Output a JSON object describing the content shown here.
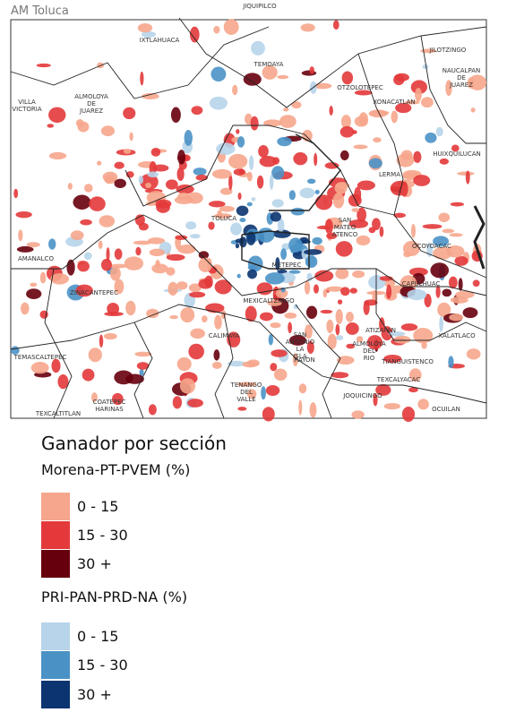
{
  "header": {
    "title": "AM Toluca"
  },
  "map": {
    "labels": [
      {
        "lines": [
          "IXTLAHUACA"
        ]
      },
      {
        "lines": [
          "JIQUIPILCO"
        ]
      },
      {
        "lines": [
          "TEMOAYA"
        ]
      },
      {
        "lines": [
          "OTZOLOTEPEC"
        ]
      },
      {
        "lines": [
          "JILOTZINGO"
        ]
      },
      {
        "lines": [
          "NAUCALPAN",
          "DE",
          "JUAREZ"
        ]
      },
      {
        "lines": [
          "XONACATLAN"
        ]
      },
      {
        "lines": [
          "VILLA",
          "VICTORIA"
        ]
      },
      {
        "lines": [
          "ALMOLOYA",
          "DE",
          "JUAREZ"
        ]
      },
      {
        "lines": [
          "HUIXQUILUCAN"
        ]
      },
      {
        "lines": [
          "LERMA"
        ]
      },
      {
        "lines": [
          "TOLUCA"
        ]
      },
      {
        "lines": [
          "SAN",
          "MATEO",
          "ATENCO"
        ]
      },
      {
        "lines": [
          "OCOYOACAC"
        ]
      },
      {
        "lines": [
          "AMANALCO"
        ]
      },
      {
        "lines": [
          "METEPEC"
        ]
      },
      {
        "lines": [
          "ZINACANTEPEC"
        ]
      },
      {
        "lines": [
          "CAPULHUAC"
        ]
      },
      {
        "lines": [
          "MEXICALTZINGO"
        ]
      },
      {
        "lines": [
          "CALIMAYA"
        ]
      },
      {
        "lines": [
          "SAN",
          "ANTONIO",
          "LA",
          "ISLA"
        ]
      },
      {
        "lines": [
          "RAYON"
        ]
      },
      {
        "lines": [
          "ATIZAPAN"
        ]
      },
      {
        "lines": [
          "XALATLACO"
        ]
      },
      {
        "lines": [
          "TEMASCALTEPEC"
        ]
      },
      {
        "lines": [
          "ALMOLOYA",
          "DEL",
          "RIO"
        ]
      },
      {
        "lines": [
          "TIANGUISTENCO"
        ]
      },
      {
        "lines": [
          "TEXCALYACAC"
        ]
      },
      {
        "lines": [
          "TENANGO",
          "DEL",
          "VALLE"
        ]
      },
      {
        "lines": [
          "JOQUICINGO"
        ]
      },
      {
        "lines": [
          "COATEPEC",
          "HARINAS"
        ]
      },
      {
        "lines": [
          "TEXCALTITLAN"
        ]
      },
      {
        "lines": [
          "OCUILAN"
        ]
      }
    ]
  },
  "legend": {
    "title": "Ganador por sección",
    "groups": [
      {
        "title": "Morena-PT-PVEM (%)",
        "items": [
          {
            "label": "0 - 15",
            "color": "#f6a68c"
          },
          {
            "label": "15 - 30",
            "color": "#e3393a"
          },
          {
            "label": "30 +",
            "color": "#67000d"
          }
        ]
      },
      {
        "title": "PRI-PAN-PRD-NA (%)",
        "items": [
          {
            "label": "0 - 15",
            "color": "#b7d4ea"
          },
          {
            "label": "15 - 30",
            "color": "#4a92c6"
          },
          {
            "label": "30 +",
            "color": "#0b3470"
          }
        ]
      }
    ]
  }
}
